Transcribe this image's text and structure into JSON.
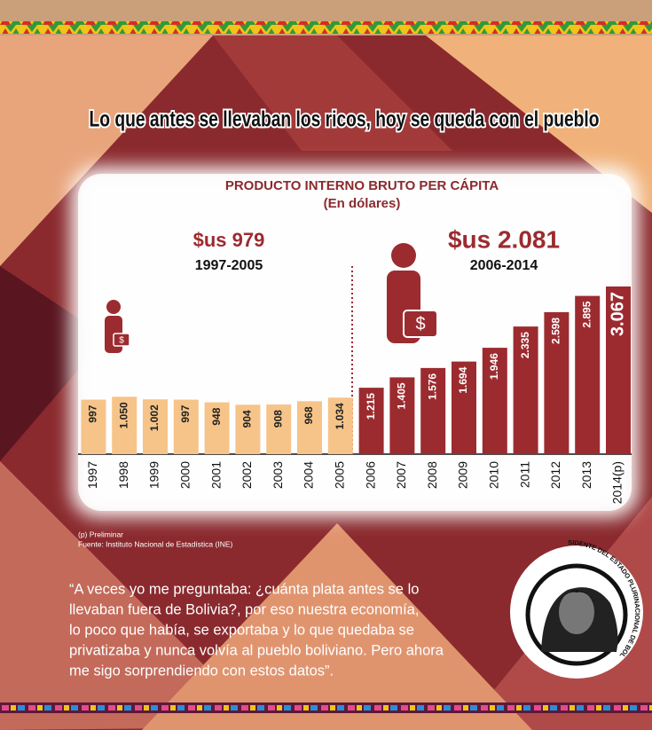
{
  "headline": "Lo que antes se llevaban los ricos, hoy se queda con el pueblo",
  "chart_data": {
    "type": "bar",
    "title": "PRODUCTO INTERNO BRUTO PER CÁPITA",
    "subtitle": "(En dólares)",
    "categories": [
      "1997",
      "1998",
      "1999",
      "2000",
      "2001",
      "2002",
      "2003",
      "2004",
      "2005",
      "2006",
      "2007",
      "2008",
      "2009",
      "2010",
      "2011",
      "2012",
      "2013",
      "2014(p)"
    ],
    "values": [
      997,
      1050,
      1002,
      997,
      948,
      904,
      908,
      968,
      1034,
      1215,
      1405,
      1576,
      1694,
      1946,
      2335,
      2598,
      2895,
      3067
    ],
    "value_labels": [
      "997",
      "1.050",
      "1.002",
      "997",
      "948",
      "904",
      "908",
      "968",
      "1.034",
      "1.215",
      "1.405",
      "1.576",
      "1.694",
      "1.946",
      "2.335",
      "2.598",
      "2.895",
      "3.067"
    ],
    "bar_colors": [
      "#f6c489",
      "#f6c489",
      "#f6c489",
      "#f6c489",
      "#f6c489",
      "#f6c489",
      "#f6c489",
      "#f6c489",
      "#f6c489",
      "#9c2b30",
      "#9c2b30",
      "#9c2b30",
      "#9c2b30",
      "#9c2b30",
      "#9c2b30",
      "#9c2b30",
      "#9c2b30",
      "#9c2b30"
    ],
    "periods": [
      {
        "average": "$us 979",
        "years": "1997-2005"
      },
      {
        "average": "$us 2.081",
        "years": "2006-2014"
      }
    ],
    "notes": [
      "(p) Preliminar",
      "Fuente: Instituto Nacional de Estadística (INE)"
    ]
  },
  "quote": [
    "“A veces yo me preguntaba: ¿cuánta plata antes se lo",
    "llevaban fuera de Bolivia?, por eso nuestra economía,",
    "lo poco que había, se exportaba y lo que quedaba se",
    "privatizaba y nunca volvía al pueblo boliviano. Pero ahora",
    "me sigo sorprendiendo con estos datos”."
  ],
  "badge": {
    "name": "EVO MORALES AYMA",
    "role": "PRESIDENTE DEL ESTADO PLURINACIONAL DE BOLIVIA"
  }
}
